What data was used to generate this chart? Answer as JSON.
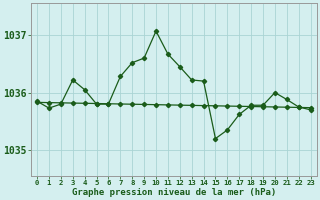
{
  "title": "Graphe pression niveau de la mer (hPa)",
  "background_color": "#d4efef",
  "grid_color": "#aad4d4",
  "line_color": "#1a5c1a",
  "y_ticks": [
    1035,
    1036,
    1037
  ],
  "ylim": [
    1034.55,
    1037.55
  ],
  "xlim": [
    -0.5,
    23.5
  ],
  "series1_y": [
    1035.85,
    1035.73,
    1035.8,
    1036.22,
    1036.05,
    1035.8,
    1035.8,
    1036.28,
    1036.52,
    1036.6,
    1037.07,
    1036.67,
    1036.45,
    1036.22,
    1036.2,
    1035.2,
    1035.35,
    1035.62,
    1035.78,
    1035.78,
    1036.0,
    1035.88,
    1035.75,
    1035.7
  ],
  "x_labels": [
    "0",
    "1",
    "2",
    "3",
    "4",
    "5",
    "6",
    "7",
    "8",
    "9",
    "10",
    "11",
    "12",
    "13",
    "14",
    "15",
    "16",
    "17",
    "18",
    "19",
    "20",
    "21",
    "22",
    "23"
  ]
}
